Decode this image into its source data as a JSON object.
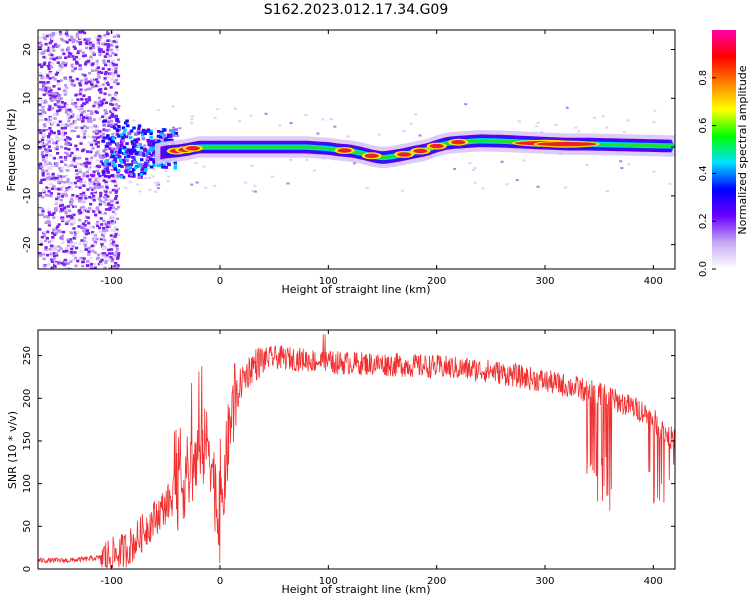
{
  "title": "S162.2023.012.17.34.G09",
  "colors": {
    "snr_line": "#f03030",
    "ridge_core": "#e8202a",
    "background": "#ffffff"
  },
  "colormap_stops": [
    "#ffffff",
    "#c8a8f4",
    "#6a00ff",
    "#0000ff",
    "#00e0ff",
    "#00ff00",
    "#ffff00",
    "#ff8000",
    "#ff0000",
    "#ff00aa"
  ],
  "chart_data": [
    {
      "type": "heatmap",
      "title": "",
      "xlabel": "Height of straight line (km)",
      "ylabel": "Frequency (Hz)",
      "xlim": [
        -168,
        420
      ],
      "ylim": [
        -25,
        24
      ],
      "x_ticks": [
        -100,
        0,
        100,
        200,
        300,
        400
      ],
      "x_tick_labels": [
        "-100",
        "0",
        "100",
        "200",
        "300",
        "400"
      ],
      "y_ticks": [
        -20,
        -10,
        0,
        10,
        20
      ],
      "y_tick_labels": [
        "-20",
        "-10",
        "0",
        "10",
        "20"
      ],
      "colorbar": {
        "label": "Normalized spectral amplitude",
        "range": [
          0,
          1
        ],
        "ticks": [
          0.0,
          0.2,
          0.4,
          0.6,
          0.8
        ],
        "tick_labels": [
          "0.0",
          "0.2",
          "0.4",
          "0.6",
          "0.8"
        ]
      },
      "ridge": {
        "x": [
          -60,
          -50,
          -40,
          -30,
          -20,
          0,
          20,
          40,
          60,
          80,
          100,
          110,
          120,
          130,
          140,
          150,
          160,
          170,
          180,
          190,
          200,
          210,
          220,
          240,
          260,
          280,
          300,
          320,
          340,
          360,
          380,
          400,
          420
        ],
        "freq": [
          -1.5,
          -1.0,
          -0.8,
          -0.5,
          0,
          0,
          0,
          0,
          0,
          0,
          -0.3,
          -0.6,
          -0.8,
          -1.2,
          -1.8,
          -2.2,
          -1.9,
          -1.5,
          -1.0,
          -0.6,
          0.2,
          0.8,
          1.0,
          1.3,
          1.2,
          1.0,
          0.8,
          0.6,
          0.6,
          0.5,
          0.4,
          0.3,
          0.2
        ]
      },
      "hot_spots_x": [
        -40,
        -32,
        -25,
        115,
        140,
        170,
        185,
        200,
        220,
        300,
        320
      ]
    },
    {
      "type": "line",
      "title": "",
      "xlabel": "Height of straight line (km)",
      "ylabel": "SNR (10 * v/v)",
      "xlim": [
        -168,
        420
      ],
      "ylim": [
        0,
        280
      ],
      "x_ticks": [
        -100,
        0,
        100,
        200,
        300,
        400
      ],
      "x_tick_labels": [
        "-100",
        "0",
        "100",
        "200",
        "300",
        "400"
      ],
      "y_ticks": [
        0,
        50,
        100,
        150,
        200,
        250
      ],
      "y_tick_labels": [
        "0",
        "50",
        "100",
        "150",
        "200",
        "250"
      ],
      "series": [
        {
          "x": [
            -168,
            -140,
            -120,
            -100,
            -90,
            -80,
            -70,
            -60,
            -50,
            -40,
            -30,
            -20,
            -10,
            0,
            5,
            10,
            15,
            20,
            30,
            40,
            50,
            80,
            100,
            150,
            200,
            250,
            300,
            330,
            350,
            370,
            390,
            400,
            410,
            420
          ],
          "y": [
            10,
            10,
            12,
            15,
            20,
            30,
            45,
            60,
            75,
            90,
            110,
            130,
            150,
            40,
            120,
            175,
            200,
            220,
            238,
            245,
            248,
            245,
            242,
            240,
            237,
            232,
            220,
            212,
            205,
            195,
            185,
            175,
            160,
            150
          ]
        }
      ]
    }
  ]
}
